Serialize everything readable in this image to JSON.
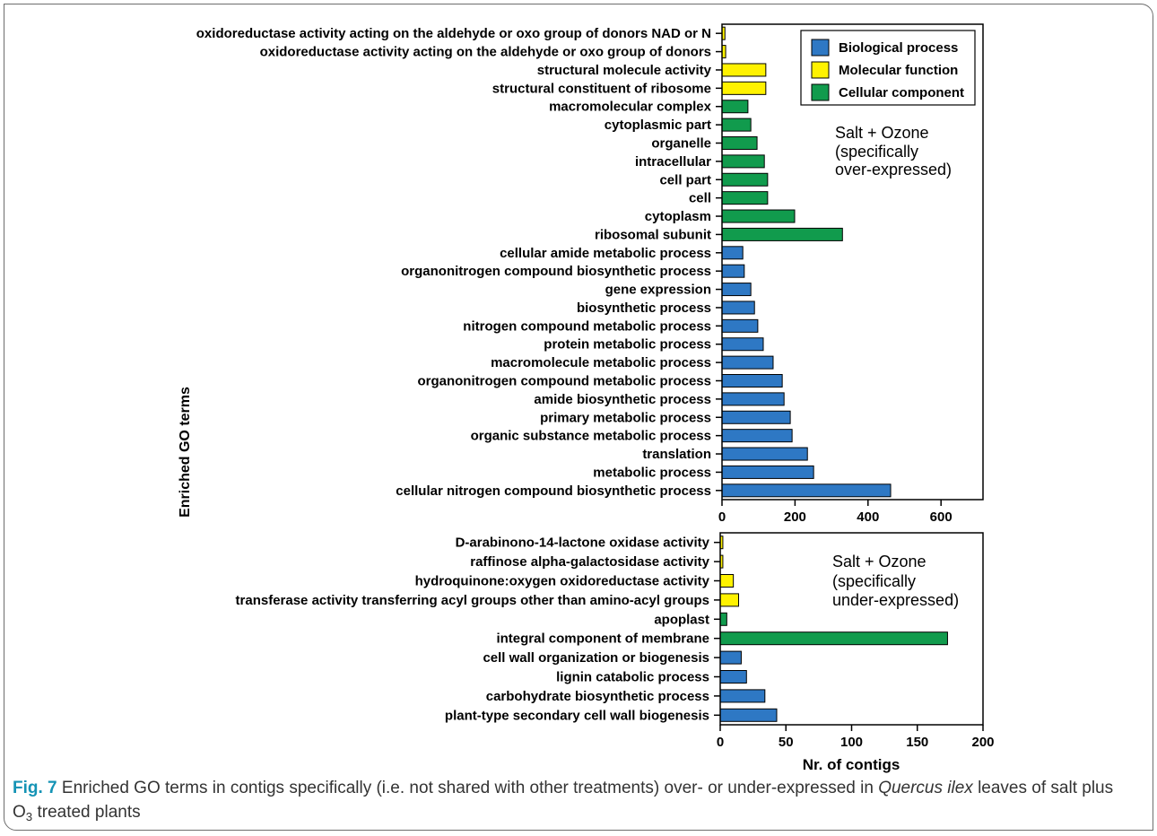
{
  "chart_data": [
    {
      "type": "bar",
      "orientation": "horizontal",
      "grid": false,
      "ylabel": "Enriched GO terms",
      "xlim": [
        0,
        715
      ],
      "xticks": [
        0,
        200,
        400,
        600
      ],
      "legend": {
        "position": "top-right",
        "entries": [
          {
            "label": "Biological process",
            "color": "#2e78c4"
          },
          {
            "label": "Molecular function",
            "color": "#fff200"
          },
          {
            "label": "Cellular component",
            "color": "#119b4d"
          }
        ]
      },
      "annotation": [
        "Salt + Ozone",
        "(specifically",
        "over-expressed)"
      ],
      "categories": [
        "oxidoreductase activity acting on the aldehyde or oxo group of donors NAD or N",
        "oxidoreductase activity acting on the aldehyde or oxo group of donors",
        "structural molecule activity",
        "structural constituent of ribosome",
        "macromolecular complex",
        "cytoplasmic part",
        "organelle",
        "intracellular",
        "cell part",
        "cell",
        "cytoplasm",
        "ribosomal subunit",
        "cellular amide metabolic process",
        "organonitrogen compound biosynthetic process",
        "gene expression",
        "biosynthetic process",
        "nitrogen compound metabolic process",
        "protein metabolic process",
        "macromolecule metabolic process",
        "organonitrogen compound metabolic process",
        "amide biosynthetic process",
        "primary metabolic process",
        "organic substance metabolic process",
        "translation",
        "metabolic process",
        "cellular nitrogen compound biosynthetic process"
      ],
      "values": [
        8,
        10,
        120,
        120,
        71,
        79,
        96,
        116,
        125,
        125,
        199,
        330,
        57,
        61,
        79,
        89,
        98,
        113,
        140,
        165,
        170,
        187,
        192,
        234,
        251,
        462
      ],
      "class_index": [
        1,
        1,
        1,
        1,
        2,
        2,
        2,
        2,
        2,
        2,
        2,
        2,
        0,
        0,
        0,
        0,
        0,
        0,
        0,
        0,
        0,
        0,
        0,
        0,
        0,
        0
      ]
    },
    {
      "type": "bar",
      "orientation": "horizontal",
      "grid": false,
      "xlabel": "Nr. of contigs",
      "xlim": [
        0,
        200
      ],
      "xticks": [
        0,
        50,
        100,
        150,
        200
      ],
      "annotation": [
        "Salt + Ozone",
        "(specifically",
        "under-expressed)"
      ],
      "categories": [
        "D-arabinono-14-lactone oxidase activity",
        "raffinose alpha-galactosidase activity",
        "hydroquinone:oxygen oxidoreductase activity",
        "transferase activity transferring acyl groups other than amino-acyl groups",
        "apoplast",
        "integral component of membrane",
        "cell wall organization or biogenesis",
        "lignin catabolic process",
        "carbohydrate biosynthetic process",
        "plant-type secondary cell wall biogenesis"
      ],
      "values": [
        2,
        2,
        10,
        14,
        5,
        173,
        16,
        20,
        34,
        43
      ],
      "class_index": [
        1,
        1,
        1,
        1,
        2,
        2,
        0,
        0,
        0,
        0
      ]
    }
  ],
  "caption": {
    "label": "Fig. 7",
    "text_before_species": "Enriched GO terms in contigs specifically (i.e. not shared with other treatments) over- or under-expressed in",
    "species": "Quercus ilex",
    "text_after_species": "leaves of salt plus",
    "formula_base": "O",
    "formula_subscript": "3",
    "text_end": "treated plants"
  }
}
